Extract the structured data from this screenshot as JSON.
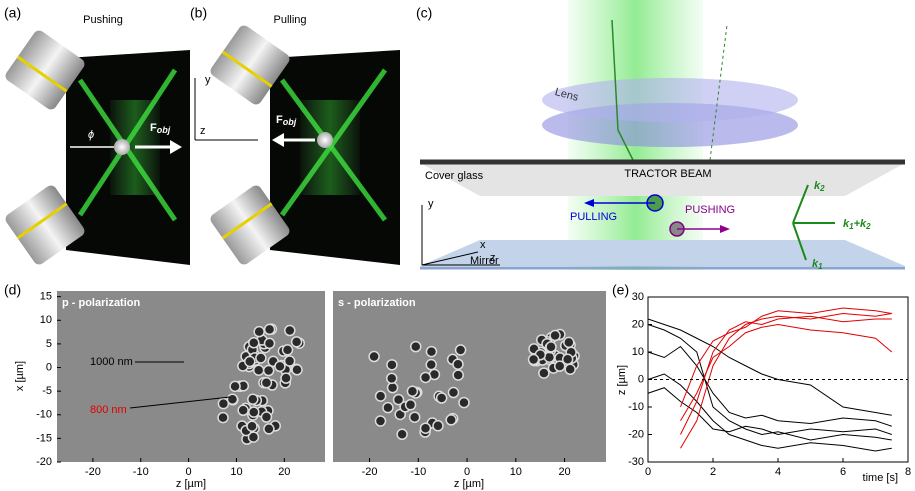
{
  "panel_labels": [
    "(a)",
    "(b)",
    "(c)",
    "(d)",
    "(e)"
  ],
  "panel_a": {
    "title": "Pushing",
    "phi": "ϕ",
    "force": {
      "base": "F",
      "sub": "obj"
    }
  },
  "panel_b": {
    "title": "Pulling",
    "axis_y": "y",
    "axis_z": "z",
    "force": {
      "base": "F",
      "sub": "obj"
    }
  },
  "panel_c": {
    "lens": "Lens",
    "cover_glass": "Cover glass",
    "tractor": "TRACTOR BEAM",
    "pulling": "PULLING",
    "pushing": "PUSHING",
    "mirror": "Mirror",
    "axis_x": "x",
    "axis_y": "y",
    "axis_z": "z",
    "k2": {
      "base": "k",
      "sub": "2"
    },
    "k1": {
      "base": "k",
      "sub": "1"
    },
    "ksum": {
      "base": "k",
      "sub": "1",
      "mid": "+k",
      "sub2": "2"
    }
  },
  "panel_d": {
    "left_title": "p - polarization",
    "right_title": "s - polarization",
    "label_1000": "1000 nm",
    "label_800": "800 nm",
    "xlabel": "z [µm]",
    "ylabel": "x [µm]",
    "xlim": [
      -27.5,
      28.5
    ],
    "ylim": [
      -20,
      16.2
    ],
    "xticks": [
      -20,
      -10,
      0,
      10,
      20
    ],
    "yticks": [
      15,
      10,
      5,
      0,
      -5,
      -10,
      -15,
      -20
    ]
  },
  "chart_data": {
    "type": "line",
    "xlabel": "time [s]",
    "ylabel": "z [µm]",
    "xlim": [
      0,
      8
    ],
    "ylim": [
      -30,
      30
    ],
    "xticks": [
      0,
      2,
      4,
      6,
      8
    ],
    "yticks": [
      30,
      20,
      10,
      0,
      -10,
      -20,
      -30
    ],
    "hline": 0,
    "x": [
      0,
      0.5,
      1,
      1.5,
      2,
      2.5,
      3,
      3.5,
      4,
      5,
      6,
      7,
      7.5
    ],
    "series": [
      {
        "color": "#000000",
        "values": [
          20,
          18,
          15,
          10,
          -10,
          -15,
          -18,
          -20,
          -19,
          -22,
          -20,
          -21,
          -22
        ]
      },
      {
        "color": "#000000",
        "values": [
          10,
          8,
          12,
          5,
          -5,
          -12,
          -14,
          -13,
          -15,
          -16,
          -14,
          -15,
          -17
        ]
      },
      {
        "color": "#000000",
        "values": [
          0,
          2,
          -2,
          -8,
          -15,
          -20,
          -22,
          -24,
          -25,
          -23,
          -24,
          -26,
          -25
        ]
      },
      {
        "color": "#000000",
        "values": [
          22,
          20,
          18,
          15,
          12,
          8,
          5,
          2,
          0,
          -2,
          -10,
          -12,
          -13
        ]
      },
      {
        "color": "#000000",
        "values": [
          -5,
          -3,
          -8,
          -12,
          -18,
          -19,
          -17,
          -18,
          -20,
          -18,
          -19,
          -18,
          -20
        ]
      },
      {
        "color": "#e00000",
        "values": [
          null,
          null,
          -25,
          -15,
          5,
          15,
          20,
          22,
          23,
          22,
          24,
          23,
          24
        ]
      },
      {
        "color": "#e00000",
        "values": [
          null,
          null,
          -20,
          -8,
          10,
          18,
          21,
          20,
          22,
          23,
          21,
          22,
          22
        ]
      },
      {
        "color": "#e00000",
        "values": [
          null,
          null,
          -15,
          -5,
          8,
          12,
          17,
          19,
          20,
          18,
          17,
          15,
          10
        ]
      },
      {
        "color": "#e00000",
        "values": [
          null,
          null,
          -10,
          5,
          14,
          17,
          19,
          23,
          25,
          24,
          26,
          25,
          24
        ]
      }
    ]
  }
}
